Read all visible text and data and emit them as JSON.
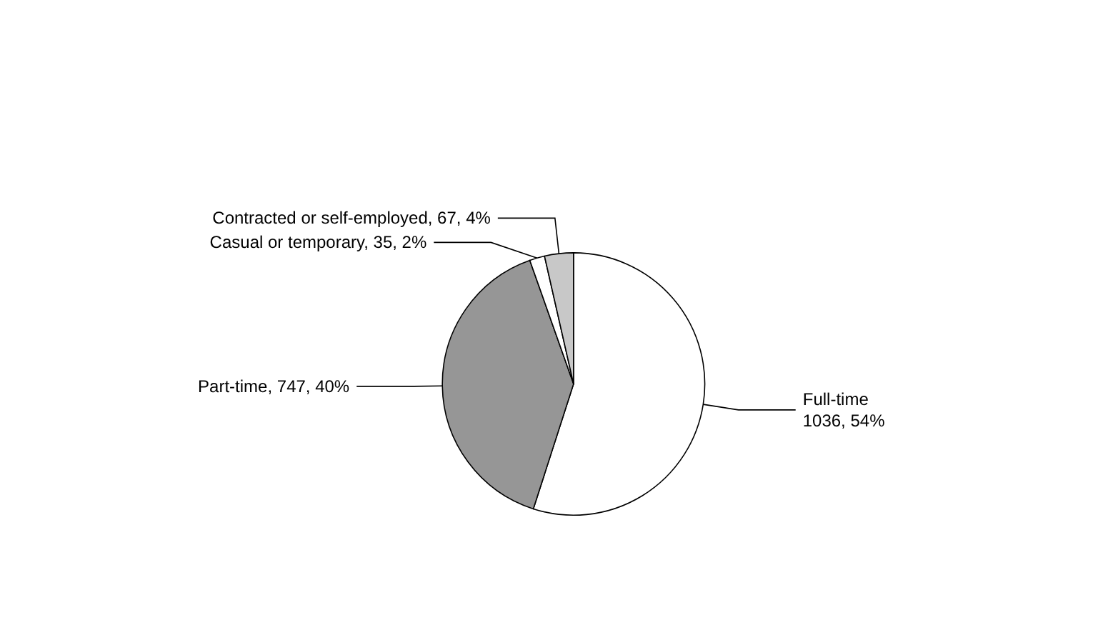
{
  "chart_data": {
    "type": "pie",
    "categories": [
      "Full-time",
      "Part-time",
      "Casual or temporary",
      "Contracted or self-employed"
    ],
    "values": [
      1036,
      747,
      35,
      67
    ],
    "colors": [
      "#ffffff",
      "#969696",
      "#ffffff",
      "#c8c8c8"
    ],
    "value_labels": [
      "1036, 54%",
      "747, 40%",
      "35, 2%",
      "67, 4%"
    ],
    "legend": false
  }
}
